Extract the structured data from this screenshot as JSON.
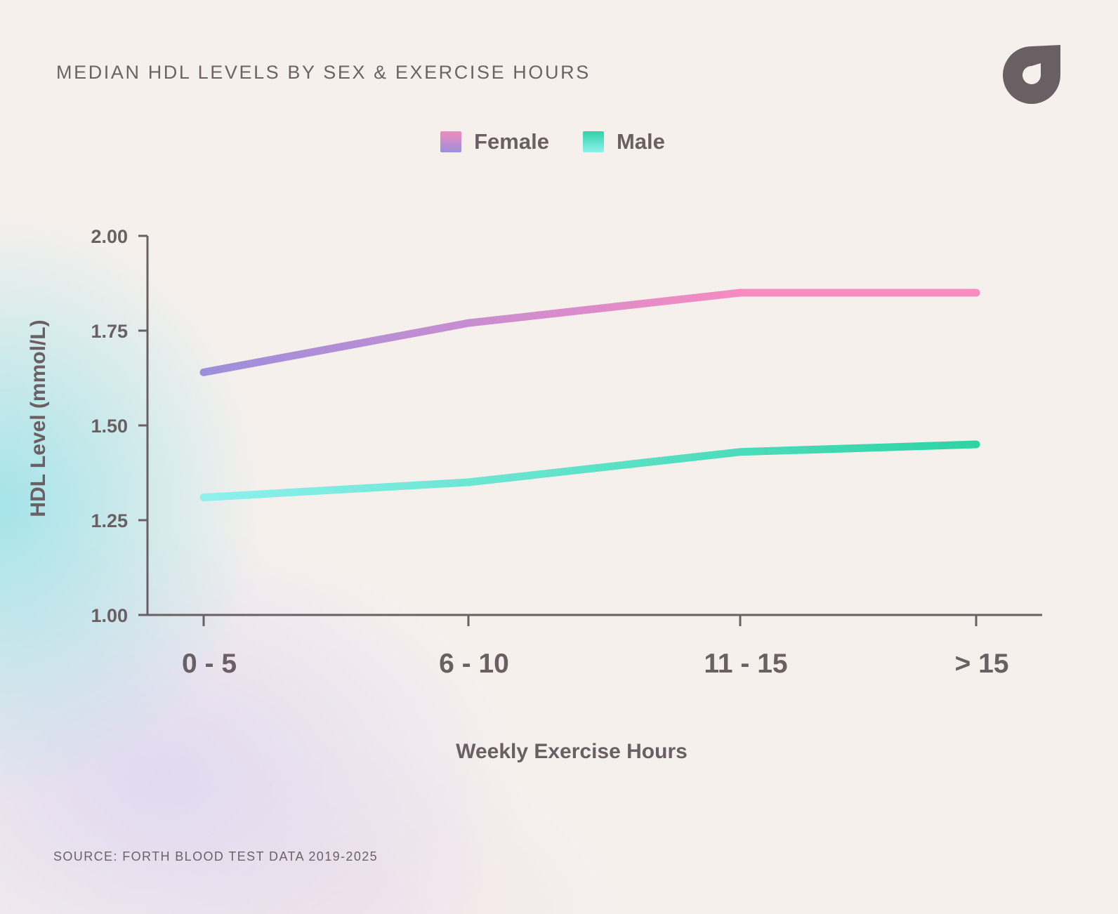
{
  "header": {
    "title": "MEDIAN HDL LEVELS BY SEX & EXERCISE HOURS"
  },
  "footer": {
    "source": "SOURCE: FORTH BLOOD TEST DATA 2019-2025"
  },
  "logo": {
    "icon": "forth-logo-icon",
    "color": "#6a5f62"
  },
  "colors": {
    "text": "#6a5f62",
    "axis": "#6a5f62",
    "background": "#f6f0ed",
    "female_start": "#9b8fdc",
    "female_end": "#f78bc2",
    "male_start": "#8ff0ee",
    "male_end": "#2ed3a3"
  },
  "chart_data": {
    "type": "line",
    "title": "MEDIAN HDL LEVELS BY SEX & EXERCISE HOURS",
    "xlabel": "Weekly Exercise Hours",
    "ylabel": "HDL Level (mmol/L)",
    "categories": [
      "0 - 5",
      "6 - 10",
      "11 - 15",
      "> 15"
    ],
    "ylim": [
      1.0,
      2.0
    ],
    "yticks": [
      "1.00",
      "1.25",
      "1.50",
      "1.75",
      "2.00"
    ],
    "grid": false,
    "legend_position": "top-center",
    "series": [
      {
        "name": "Female",
        "values": [
          1.64,
          1.77,
          1.85,
          1.85
        ]
      },
      {
        "name": "Male",
        "values": [
          1.31,
          1.35,
          1.43,
          1.45
        ]
      }
    ]
  }
}
